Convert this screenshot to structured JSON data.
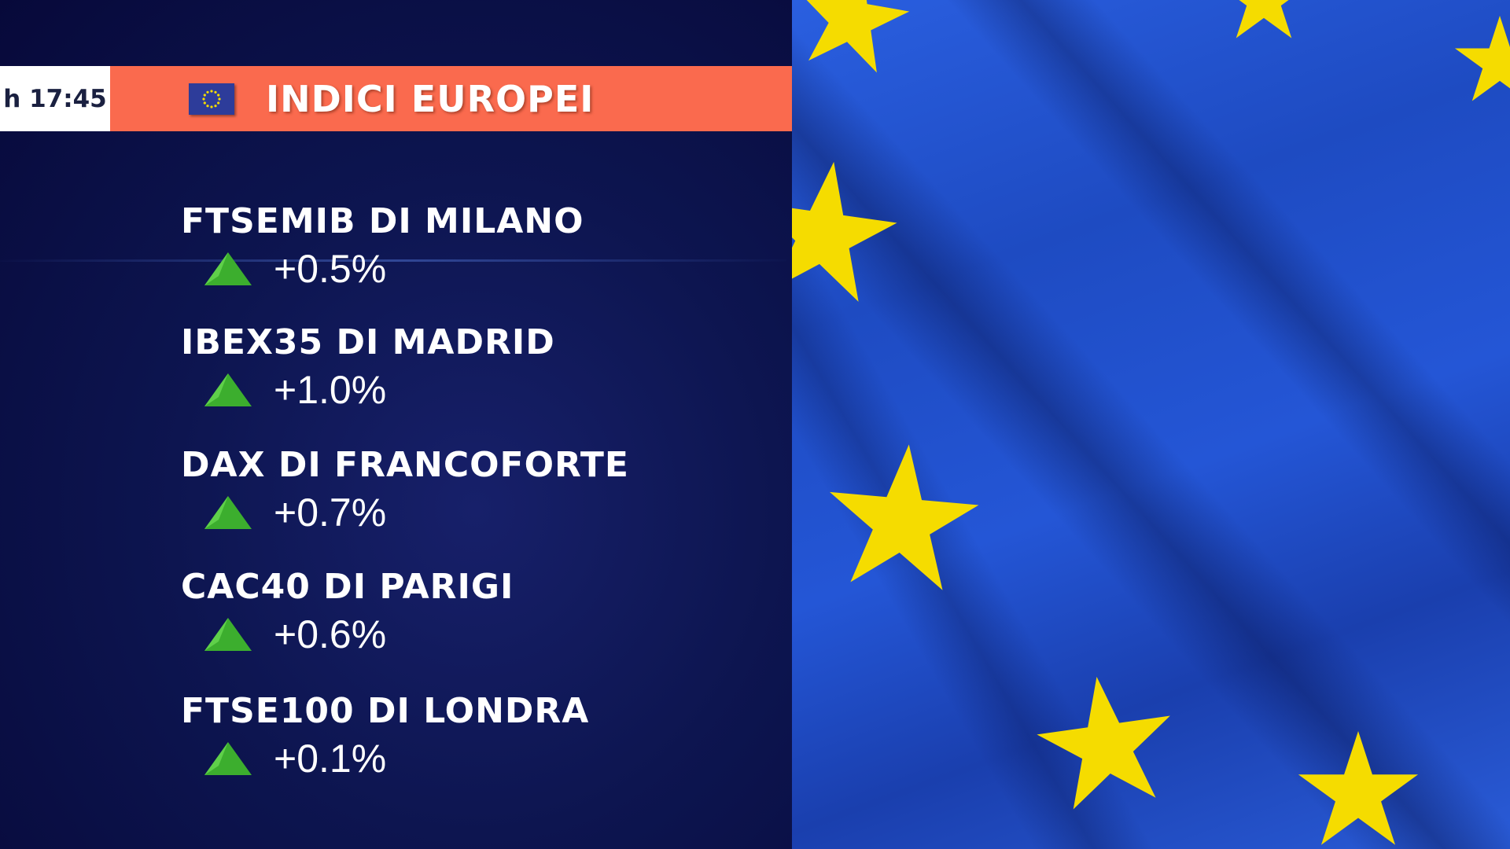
{
  "header": {
    "time": "h 17:45",
    "title": "INDICI EUROPEI",
    "flag_icon": "eu-flag-icon",
    "band_color": "#fa6a4e"
  },
  "indices": [
    {
      "name": "FTSEMIB DI MILANO",
      "change": "+0.5%",
      "direction": "up"
    },
    {
      "name": "IBEX35 DI MADRID",
      "change": "+1.0%",
      "direction": "up"
    },
    {
      "name": "DAX DI FRANCOFORTE",
      "change": "+0.7%",
      "direction": "up"
    },
    {
      "name": "CAC40 DI PARIGI",
      "change": "+0.6%",
      "direction": "up"
    },
    {
      "name": "FTSE100 DI LONDRA",
      "change": "+0.1%",
      "direction": "up"
    }
  ],
  "colors": {
    "up": "#3cae2e",
    "flag_blue": "#2456d6",
    "star": "#f5dc00"
  }
}
